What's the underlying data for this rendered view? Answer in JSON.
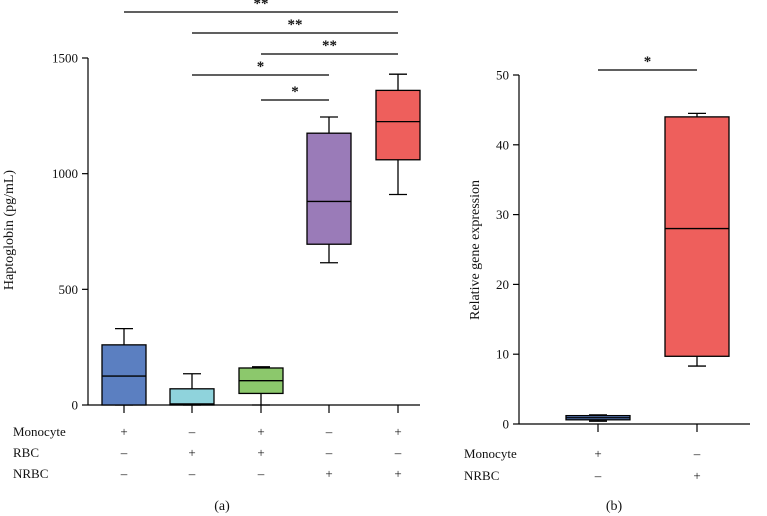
{
  "chart_data": [
    {
      "panel": "(a)",
      "type": "box",
      "ylabel": "Haptoglobin (pg/mL)",
      "ylim": [
        0,
        1500
      ],
      "yticks": [
        0,
        500,
        1000,
        1500
      ],
      "conditions": [
        {
          "name": "Monocyte",
          "marks": [
            "+",
            "–",
            "+",
            "–",
            "+"
          ]
        },
        {
          "name": "RBC",
          "marks": [
            "–",
            "+",
            "+",
            "–",
            "–"
          ]
        },
        {
          "name": "NRBC",
          "marks": [
            "–",
            "–",
            "–",
            "+",
            "+"
          ]
        }
      ],
      "groups": [
        {
          "min": 0,
          "q1": 0,
          "median": 125,
          "q3": 260,
          "max": 330,
          "color": "#5b7fc1"
        },
        {
          "min": 0,
          "q1": 0,
          "median": 5,
          "q3": 70,
          "max": 135,
          "color": "#8fd3dc"
        },
        {
          "min": 0,
          "q1": 50,
          "median": 105,
          "q3": 160,
          "max": 165,
          "color": "#8cc86c"
        },
        {
          "min": 615,
          "q1": 695,
          "median": 880,
          "q3": 1175,
          "max": 1245,
          "color": "#9a7bb8"
        },
        {
          "min": 910,
          "q1": 1060,
          "median": 1225,
          "q3": 1360,
          "max": 1430,
          "color": "#ee5f5c"
        }
      ],
      "significance": [
        {
          "from": 1,
          "to": 5,
          "label": "**"
        },
        {
          "from": 2,
          "to": 5,
          "label": "**"
        },
        {
          "from": 3,
          "to": 5,
          "label": "**"
        },
        {
          "from": 2,
          "to": 4,
          "label": "*"
        },
        {
          "from": 3,
          "to": 4,
          "label": "*"
        }
      ]
    },
    {
      "panel": "(b)",
      "type": "box",
      "ylabel": "Relative gene expression",
      "ylim": [
        0,
        50
      ],
      "yticks": [
        0,
        10,
        20,
        30,
        40,
        50
      ],
      "conditions": [
        {
          "name": "Monocyte",
          "marks": [
            "+",
            "–"
          ]
        },
        {
          "name": "NRBC",
          "marks": [
            "–",
            "+"
          ]
        }
      ],
      "groups": [
        {
          "min": 0.4,
          "q1": 0.6,
          "median": 0.9,
          "q3": 1.2,
          "max": 1.3,
          "color": "#5b7fc1"
        },
        {
          "min": 8.3,
          "q1": 9.7,
          "median": 28,
          "q3": 44,
          "max": 44.5,
          "color": "#ee5f5c"
        }
      ],
      "significance": [
        {
          "from": 1,
          "to": 2,
          "label": "*"
        }
      ]
    }
  ]
}
